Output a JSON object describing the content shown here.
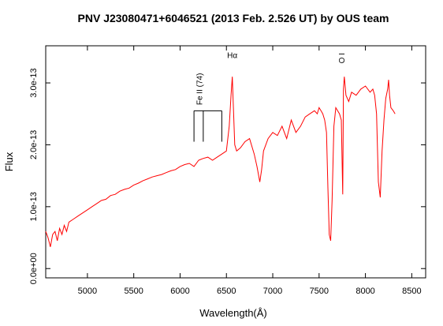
{
  "chart_data": {
    "type": "line",
    "title": "PNV J23080471+6046521 (2013 Feb. 2.526 UT) by OUS team",
    "xlabel": "Wavelength(Å)",
    "ylabel": "Flux",
    "xlim": [
      4550,
      8650
    ],
    "ylim": [
      -1.5e-14,
      3.6e-13
    ],
    "x_ticks": [
      5000,
      5500,
      6000,
      6500,
      7000,
      7500,
      8000,
      8500
    ],
    "x_tick_labels": [
      "5000",
      "5500",
      "6000",
      "6500",
      "7000",
      "7500",
      "8000",
      "8500"
    ],
    "y_ticks": [
      0,
      1e-13,
      2e-13,
      3e-13
    ],
    "y_tick_labels": [
      "0.0e+00",
      "1.0e-13",
      "2.0e-13",
      "3.0e-13"
    ],
    "line_color": "#ff0000",
    "grid": false,
    "series": [
      {
        "values_x": [
          4550,
          4575,
          4600,
          4625,
          4650,
          4675,
          4700,
          4725,
          4750,
          4775,
          4800,
          4850,
          4900,
          4950,
          5000,
          5050,
          5100,
          5150,
          5200,
          5250,
          5300,
          5350,
          5400,
          5450,
          5500,
          5550,
          5600,
          5650,
          5700,
          5750,
          5800,
          5850,
          5900,
          5950,
          6000,
          6050,
          6100,
          6150,
          6200,
          6250,
          6300,
          6350,
          6400,
          6450,
          6500,
          6530,
          6550,
          6563,
          6575,
          6590,
          6610,
          6650,
          6700,
          6750,
          6800,
          6830,
          6860,
          6880,
          6900,
          6950,
          7000,
          7050,
          7100,
          7150,
          7200,
          7250,
          7300,
          7350,
          7400,
          7450,
          7480,
          7500,
          7520,
          7540,
          7560,
          7580,
          7595,
          7610,
          7625,
          7640,
          7660,
          7680,
          7700,
          7720,
          7740,
          7755,
          7763,
          7772,
          7790,
          7820,
          7850,
          7900,
          7950,
          8000,
          8050,
          8080,
          8100,
          8120,
          8140,
          8160,
          8180,
          8200,
          8220,
          8240,
          8250,
          8260,
          8275,
          8300,
          8320
        ],
        "values_y": [
          6e-14,
          5e-14,
          3.5e-14,
          5.5e-14,
          6e-14,
          4.5e-14,
          6.5e-14,
          5.5e-14,
          7e-14,
          6e-14,
          7.5e-14,
          8e-14,
          8.5e-14,
          9e-14,
          9.5e-14,
          1e-13,
          1.05e-13,
          1.1e-13,
          1.12e-13,
          1.18e-13,
          1.2e-13,
          1.25e-13,
          1.28e-13,
          1.3e-13,
          1.35e-13,
          1.38e-13,
          1.42e-13,
          1.45e-13,
          1.48e-13,
          1.5e-13,
          1.52e-13,
          1.55e-13,
          1.58e-13,
          1.6e-13,
          1.65e-13,
          1.68e-13,
          1.7e-13,
          1.65e-13,
          1.75e-13,
          1.78e-13,
          1.8e-13,
          1.75e-13,
          1.8e-13,
          1.85e-13,
          1.9e-13,
          2.3e-13,
          2.8e-13,
          3.1e-13,
          2.6e-13,
          2e-13,
          1.9e-13,
          1.95e-13,
          2.05e-13,
          2.1e-13,
          1.85e-13,
          1.65e-13,
          1.4e-13,
          1.6e-13,
          1.9e-13,
          2.1e-13,
          2.2e-13,
          2.15e-13,
          2.3e-13,
          2.1e-13,
          2.4e-13,
          2.2e-13,
          2.3e-13,
          2.45e-13,
          2.5e-13,
          2.55e-13,
          2.5e-13,
          2.6e-13,
          2.55e-13,
          2.5e-13,
          2.4e-13,
          2.2e-13,
          1.3e-13,
          5.5e-14,
          4.5e-14,
          1.1e-13,
          2.3e-13,
          2.6e-13,
          2.55e-13,
          2.5e-13,
          2.4e-13,
          1.2e-13,
          2.9e-13,
          3.1e-13,
          2.8e-13,
          2.7e-13,
          2.85e-13,
          2.8e-13,
          2.9e-13,
          2.95e-13,
          2.85e-13,
          2.9e-13,
          2.8e-13,
          2.5e-13,
          1.4e-13,
          1.15e-13,
          1.9e-13,
          2.4e-13,
          2.75e-13,
          2.9e-13,
          3.05e-13,
          2.8e-13,
          2.6e-13,
          2.55e-13,
          2.5e-13
        ]
      }
    ],
    "annotations": [
      {
        "text": "Hα",
        "x": 6563,
        "y": 3.4e-13,
        "rotation": 0
      },
      {
        "text": "O I",
        "x": 7774,
        "y": 3.4e-13,
        "rotation": -90
      },
      {
        "text": "Fe II (74)",
        "x": 6240,
        "y": 2.9e-13,
        "rotation": -90
      }
    ],
    "bracket": {
      "label": "Fe II (74)",
      "lines_x": [
        6150,
        6250,
        6450
      ],
      "top_y": 2.55e-13,
      "bottom_y": 2.05e-13
    }
  }
}
